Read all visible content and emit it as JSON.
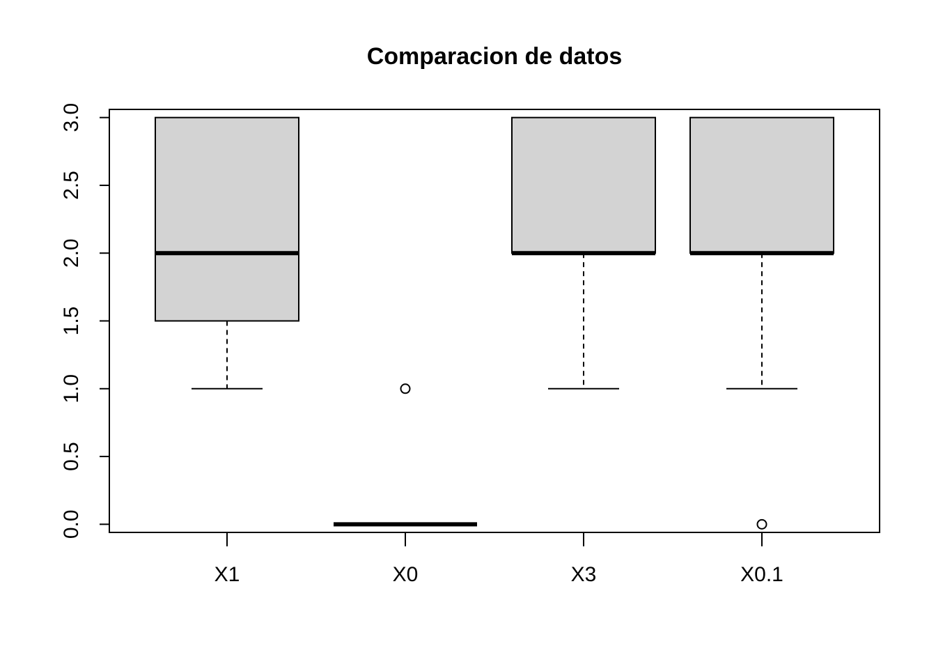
{
  "chart_data": {
    "type": "boxplot",
    "title": "Comparacion de datos",
    "xlabel": "",
    "ylabel": "",
    "ylim": [
      -0.06,
      3.06
    ],
    "y_ticks": [
      "0.0",
      "0.5",
      "1.0",
      "1.5",
      "2.0",
      "2.5",
      "3.0"
    ],
    "categories": [
      "X1",
      "X0",
      "X3",
      "X0.1"
    ],
    "boxes": [
      {
        "name": "X1",
        "lower_whisker": 1,
        "q1": 1.5,
        "median": 2,
        "q3": 3,
        "upper_whisker": 3,
        "outliers": []
      },
      {
        "name": "X0",
        "lower_whisker": 0,
        "q1": 0,
        "median": 0,
        "q3": 0,
        "upper_whisker": 0,
        "outliers": [
          1
        ]
      },
      {
        "name": "X3",
        "lower_whisker": 1,
        "q1": 2,
        "median": 2,
        "q3": 3,
        "upper_whisker": 3,
        "outliers": []
      },
      {
        "name": "X0.1",
        "lower_whisker": 1,
        "q1": 2,
        "median": 2,
        "q3": 3,
        "upper_whisker": 3,
        "outliers": [
          0
        ]
      }
    ],
    "grid": false,
    "colors": {
      "box_fill": "#d3d3d3",
      "stroke": "#000000"
    }
  }
}
